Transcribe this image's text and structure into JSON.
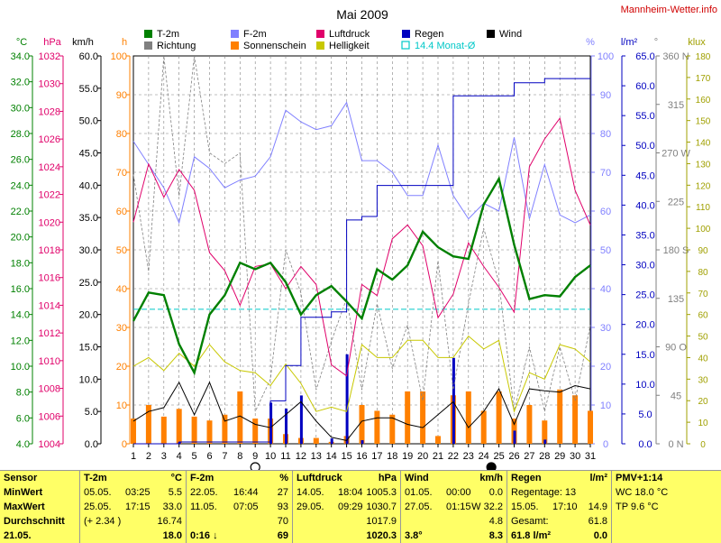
{
  "title": "Mai 2009",
  "site": "Mannheim-Wetter.info",
  "colors": {
    "temp": "#008000",
    "dir": "#808080",
    "hum": "#8080ff",
    "sun": "#ff8000",
    "press": "#e0006a",
    "bright": "#c8c800",
    "rain": "#0000c0",
    "wind": "#000000",
    "avg": "#00c8c8",
    "grid": "#808080",
    "plotbg": "#ffffff"
  },
  "legend": [
    {
      "label": "T-2m",
      "color": "#008000",
      "kind": "box"
    },
    {
      "label": "F-2m",
      "color": "#8080ff",
      "kind": "box"
    },
    {
      "label": "Luftdruck",
      "color": "#e0006a",
      "kind": "box"
    },
    {
      "label": "Regen",
      "color": "#0000c0",
      "kind": "box"
    },
    {
      "label": "Wind",
      "color": "#000000",
      "kind": "box"
    },
    {
      "label": "Richtung",
      "color": "#808080",
      "kind": "box"
    },
    {
      "label": "Sonnenschein",
      "color": "#ff8000",
      "kind": "box"
    },
    {
      "label": "Helligkeit",
      "color": "#c8c800",
      "kind": "box"
    },
    {
      "label": "14.4 Monat-Ø",
      "color": "#00c8c8",
      "kind": "outline"
    }
  ],
  "axis_units": {
    "temp": "°C",
    "press": "hPa",
    "wind": "km/h",
    "sun": "h",
    "hum": "%",
    "rain": "l/m²",
    "dir": "°",
    "bright": "klux"
  },
  "axes": {
    "temp": [
      "4.0",
      "6.0",
      "8.0",
      "10.0",
      "12.0",
      "14.0",
      "16.0",
      "18.0",
      "20.0",
      "22.0",
      "24.0",
      "26.0",
      "28.0",
      "30.0",
      "32.0",
      "34.0"
    ],
    "press": [
      "1004",
      "1006",
      "1008",
      "1010",
      "1012",
      "1014",
      "1016",
      "1018",
      "1020",
      "1022",
      "1024",
      "1026",
      "1028",
      "1030",
      "1032"
    ],
    "wind": [
      "0.0",
      "5.0",
      "10.0",
      "15.0",
      "20.0",
      "25.0",
      "30.0",
      "35.0",
      "40.0",
      "45.0",
      "50.0",
      "55.0",
      "60.0"
    ],
    "sun": [
      "0",
      "10",
      "20",
      "30",
      "40",
      "50",
      "60",
      "70",
      "80",
      "90",
      "100"
    ],
    "hum": [
      "0",
      "10",
      "20",
      "30",
      "40",
      "50",
      "60",
      "70",
      "80",
      "90",
      "100"
    ],
    "rain": [
      "0.0",
      "5.0",
      "10.0",
      "15.0",
      "20.0",
      "25.0",
      "30.0",
      "35.0",
      "40.0",
      "45.0",
      "50.0",
      "55.0",
      "60.0",
      "65.0"
    ],
    "dir": [
      "0 N",
      "45",
      "90 O",
      "135",
      "180 S",
      "225",
      "270 W",
      "315",
      "360 N"
    ],
    "bright": [
      "0",
      "10",
      "20",
      "30",
      "40",
      "50",
      "60",
      "70",
      "80",
      "90",
      "100",
      "110",
      "120",
      "130",
      "140",
      "150",
      "160",
      "170",
      "180"
    ]
  },
  "chart_data": {
    "type": "line",
    "title": "Mai 2009",
    "x": [
      1,
      2,
      3,
      4,
      5,
      6,
      7,
      8,
      9,
      10,
      11,
      12,
      13,
      14,
      15,
      16,
      17,
      18,
      19,
      20,
      21,
      22,
      23,
      24,
      25,
      26,
      27,
      28,
      29,
      30,
      31
    ],
    "xlim": [
      1,
      31
    ],
    "moon_phases": [
      {
        "day": 9,
        "phase": "full"
      },
      {
        "day": 24.5,
        "phase": "new"
      }
    ],
    "monthly_mean_temp": 14.4,
    "series": [
      {
        "name": "T-2m",
        "axis": "temp",
        "ylim": [
          4,
          34
        ],
        "values": [
          13.5,
          15.7,
          15.5,
          11.7,
          9.5,
          14.0,
          15.5,
          18.0,
          17.5,
          18.0,
          16.5,
          14.0,
          15.5,
          16.2,
          15.0,
          13.7,
          17.5,
          16.7,
          17.8,
          20.4,
          19.2,
          18.5,
          18.3,
          22.5,
          24.5,
          19.4,
          15.2,
          15.5,
          15.4,
          16.9,
          17.8
        ]
      },
      {
        "name": "F-2m",
        "axis": "hum",
        "ylim": [
          0,
          100
        ],
        "values": [
          78,
          72,
          66,
          57,
          74,
          71,
          66,
          68,
          69,
          74,
          86,
          83,
          81,
          82,
          88,
          73,
          73,
          70,
          64,
          64,
          77,
          64,
          58,
          62,
          60,
          79,
          58,
          72,
          59,
          57,
          59
        ]
      },
      {
        "name": "Luftdruck",
        "axis": "press",
        "ylim": [
          1004,
          1032
        ],
        "values": [
          1020.0,
          1024.2,
          1021.8,
          1023.8,
          1022.3,
          1017.8,
          1016.5,
          1014.0,
          1016.8,
          1017.0,
          1015.2,
          1016.8,
          1015.5,
          1009.7,
          1008.9,
          1015.5,
          1014.7,
          1018.8,
          1019.8,
          1018.3,
          1013.1,
          1014.8,
          1018.5,
          1016.8,
          1015.3,
          1013.5,
          1024.0,
          1026.0,
          1027.5,
          1022.3,
          1019.8
        ]
      },
      {
        "name": "Regen",
        "axis": "rain",
        "ylim": [
          0,
          65
        ],
        "values": [
          0,
          0,
          0,
          0.3,
          0.3,
          0.3,
          0.3,
          0.3,
          0.3,
          7.2,
          13.1,
          21.2,
          21.2,
          22.1,
          37.5,
          38.1,
          43.3,
          43.3,
          43.3,
          43.3,
          43.3,
          58.3,
          58.3,
          58.3,
          58.3,
          60.5,
          60.5,
          61.2,
          61.2,
          61.2,
          61.2
        ]
      },
      {
        "name": "Wind",
        "axis": "wind",
        "ylim": [
          0,
          60
        ],
        "values": [
          3.5,
          5.0,
          5.6,
          9.5,
          4.5,
          9.5,
          3.5,
          4.3,
          3.0,
          2.5,
          4.5,
          6.5,
          3.5,
          1.0,
          0.5,
          3.5,
          4.0,
          4.0,
          3.0,
          2.5,
          4.5,
          6.5,
          2.5,
          5.0,
          8.5,
          3.0,
          8.5,
          8.2,
          8.0,
          9.0,
          8.5
        ]
      },
      {
        "name": "Richtung",
        "axis": "dir",
        "ylim": [
          0,
          360
        ],
        "values": [
          250,
          160,
          360,
          230,
          360,
          270,
          260,
          270,
          30,
          60,
          180,
          140,
          50,
          95,
          135,
          50,
          130,
          70,
          110,
          40,
          170,
          50,
          130,
          200,
          150,
          30,
          90,
          30,
          90,
          40,
          110
        ]
      },
      {
        "name": "Helligkeit",
        "axis": "bright",
        "ylim": [
          0,
          180
        ],
        "values": [
          36,
          40,
          34,
          42,
          36,
          46,
          38,
          34,
          33,
          27,
          37,
          28,
          15,
          17,
          15,
          46,
          40,
          40,
          48,
          48,
          40,
          40,
          50,
          44,
          48,
          15,
          33,
          30,
          46,
          44,
          38
        ]
      }
    ],
    "bars": [
      {
        "name": "Sonnenschein",
        "axis": "sun",
        "ylim": [
          0,
          100
        ],
        "values": [
          6.5,
          10.0,
          7.0,
          9.0,
          7.0,
          6.0,
          7.5,
          13.5,
          6.5,
          6.5,
          2.5,
          1.5,
          1.5,
          0.5,
          2.0,
          10.0,
          8.5,
          7.5,
          13.5,
          13.5,
          2.0,
          12.5,
          13.5,
          8.5,
          13.5,
          6.5,
          10.0,
          6.0,
          14.0,
          12.5,
          8.5
        ]
      },
      {
        "name": "Regen",
        "axis": "rain",
        "ylim": [
          0,
          65
        ],
        "values": [
          0,
          0,
          0,
          0.3,
          0,
          0,
          0,
          0,
          0,
          6.9,
          5.9,
          8.1,
          0,
          0.9,
          15.0,
          0.6,
          0,
          0,
          0,
          0,
          0,
          14.4,
          0,
          0,
          0,
          2.2,
          0,
          0.7,
          0,
          0,
          0
        ]
      }
    ]
  },
  "stats": {
    "rows": [
      "Sensor",
      "MinWert",
      "MaxWert",
      "Durchschnitt",
      "21.05."
    ],
    "temp": {
      "title": "T-2m",
      "unit": "°C",
      "min": [
        "05.05.",
        "03:25",
        "5.5"
      ],
      "max": [
        "25.05.",
        "17:15",
        "33.0"
      ],
      "avg": [
        "(+ 2.34 )",
        "16.74"
      ],
      "last": [
        "",
        "",
        "18.0"
      ]
    },
    "hum": {
      "title": "F-2m",
      "unit": "%",
      "min": [
        "22.05.",
        "16:44",
        "27"
      ],
      "max": [
        "11.05.",
        "07:05",
        "93"
      ],
      "avg": [
        "70"
      ],
      "last": [
        "0:16 ↓",
        "69"
      ]
    },
    "press": {
      "title": "Luftdruck",
      "unit": "hPa",
      "min": [
        "14.05.",
        "18:04",
        "1005.3"
      ],
      "max": [
        "29.05.",
        "09:29",
        "1030.7"
      ],
      "avg": [
        "1017.9"
      ],
      "last": [
        "1020.3"
      ]
    },
    "wind": {
      "title": "Wind",
      "unit": "km/h",
      "min": [
        "01.05.",
        "00:00",
        "0.0"
      ],
      "max": [
        "27.05.",
        "01:15",
        "W 32.2"
      ],
      "avg": [
        "4.8"
      ],
      "last": [
        "3.8°",
        "8.3"
      ]
    },
    "rain": {
      "title": "Regen",
      "unit": "l/m²",
      "min": [
        "Regentage: 13"
      ],
      "max": [
        "15.05.",
        "17:10",
        "14.9"
      ],
      "avg": [
        "Gesamt:",
        "61.8"
      ],
      "last": [
        "61.8 l/m²",
        "0.0"
      ]
    },
    "pmv": {
      "title": "PMV+1:14",
      "wc": "WC 18.0 °C",
      "tp": "TP 9.6 °C"
    }
  }
}
